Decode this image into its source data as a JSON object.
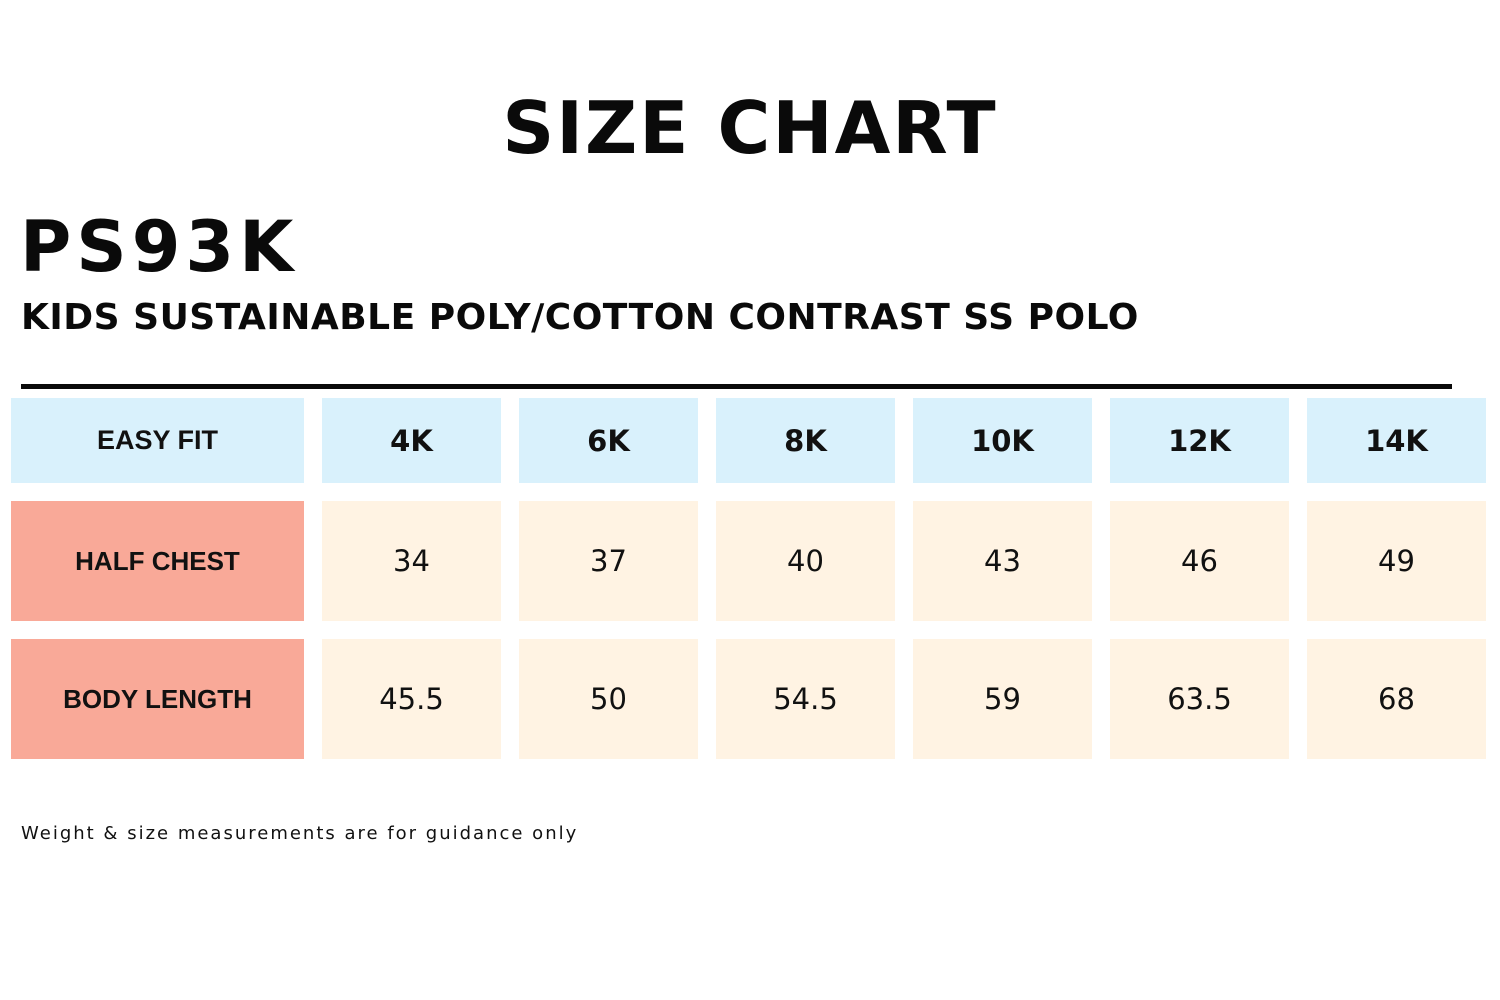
{
  "title": "SIZE CHART",
  "product": {
    "code": "PS93K",
    "name": "KIDS SUSTAINABLE POLY/COTTON CONTRAST SS POLO"
  },
  "table": {
    "header_label": "EASY FIT",
    "sizes": [
      "4K",
      "6K",
      "8K",
      "10K",
      "12K",
      "14K"
    ],
    "rows": [
      {
        "label": "HALF CHEST",
        "values": [
          "34",
          "37",
          "40",
          "43",
          "46",
          "49"
        ]
      },
      {
        "label": "BODY LENGTH",
        "values": [
          "45.5",
          "50",
          "54.5",
          "59",
          "63.5",
          "68"
        ]
      }
    ]
  },
  "disclaimer": "Weight & size measurements are for guidance only",
  "colors": {
    "header_bg": "#d9f1fc",
    "row_label_bg": "#f9a998",
    "row_value_bg": "#fff3e3",
    "text": "#111111"
  }
}
